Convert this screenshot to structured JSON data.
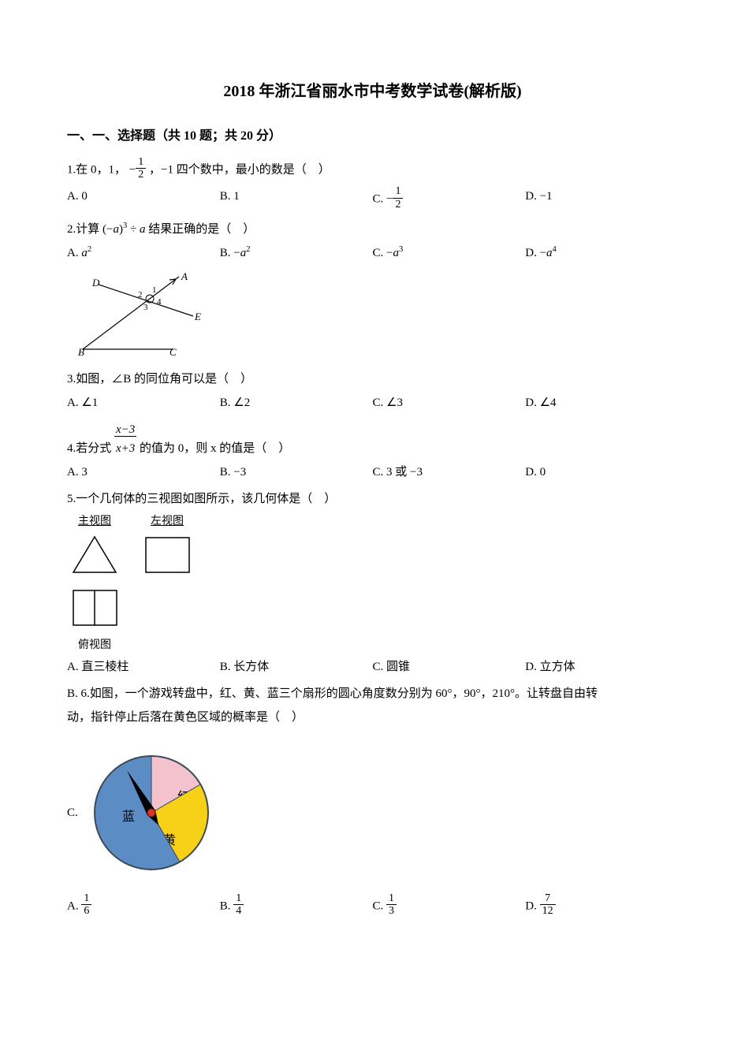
{
  "title": "2018 年浙江省丽水市中考数学试卷(解析版)",
  "section_header": "一、一、选择题（共 10 题；共 20 分）",
  "q1": {
    "prefix": "1.在 0，1，",
    "suffix": "，−1 四个数中，最小的数是（　）",
    "optA": "A. 0",
    "optB": "B. 1",
    "optC_prefix": "C. ",
    "optD": "D. −1"
  },
  "q2": {
    "prefix": "2.计算 ",
    "suffix": "结果正确的是（　）",
    "optA_pre": "A. ",
    "optA_math": "a",
    "optA_sup": "2",
    "optB_pre": "B. −",
    "optB_math": "a",
    "optB_sup": "2",
    "optC_pre": "C. −",
    "optC_math": "a",
    "optC_sup": "3",
    "optD_pre": "D. −",
    "optD_math": "a",
    "optD_sup": "4"
  },
  "q3": {
    "text": "3.如图，∠B 的同位角可以是（　）",
    "optA": "A. ∠1",
    "optB": "B. ∠2",
    "optC": "C. ∠3",
    "optD": "D. ∠4",
    "figure": {
      "labels": {
        "A": "A",
        "B": "B",
        "C": "C",
        "D": "D",
        "E": "E",
        "n1": "1",
        "n2": "2",
        "n3": "3",
        "n4": "4"
      },
      "stroke": "#000"
    }
  },
  "q4": {
    "prefix": "4.若分式 ",
    "suffix": " 的值为 0，则 x 的值是（　）",
    "frac_num": "x−3",
    "frac_den": "x+3",
    "optA": "A. 3",
    "optB": "B. −3",
    "optC": "C. 3 或 −3",
    "optD": "D. 0"
  },
  "q5": {
    "text": "5.一个几何体的三视图如图所示，该几何体是（　）",
    "view_main": "主视图",
    "view_left": "左视图",
    "view_top": "俯视图",
    "optA": "A. 直三棱柱",
    "optB": "B. 长方体",
    "optC": "C. 圆锥",
    "optD": "D. 立方体"
  },
  "q6": {
    "line1": "B. 6.如图，一个游戏转盘中，红、黄、蓝三个扇形的圆心角度数分别为 60°，90°，210°。让转盘自由转",
    "line2": "动，指针停止后落在黄色区域的概率是（　）",
    "c_label": "C.",
    "pie": {
      "slices": [
        {
          "label": "蓝",
          "angle": 210,
          "color": "#5b8cc3",
          "text_color": "#000"
        },
        {
          "label": "红",
          "angle": 60,
          "color": "#f4c2cc",
          "text_color": "#000"
        },
        {
          "label": "黄",
          "angle": 90,
          "color": "#f7d117",
          "text_color": "#000"
        }
      ],
      "arrow_color": "#000",
      "center_color": "#d9342b",
      "border_color": "#3a4a5a"
    },
    "optA_pre": "A. ",
    "optA_num": "1",
    "optA_den": "6",
    "optB_pre": "B. ",
    "optB_num": "1",
    "optB_den": "4",
    "optC_pre": "C. ",
    "optC_num": "1",
    "optC_den": "3",
    "optD_pre": "D. ",
    "optD_num": "7",
    "optD_den": "12"
  }
}
